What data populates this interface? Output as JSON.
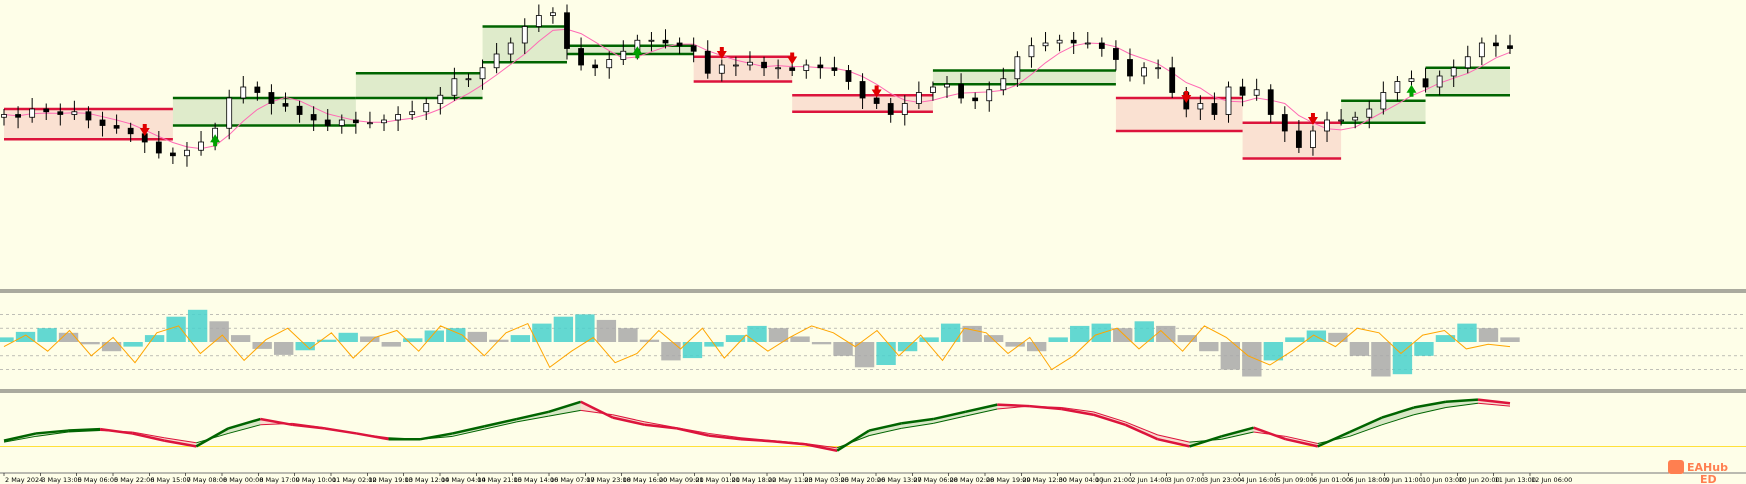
{
  "colors": {
    "background": "#fefee8",
    "bull_band": "#006400",
    "bear_band": "#dc143c",
    "candle": "#000000",
    "ma_line": "#ff69b4",
    "histogram_up": "#48d1cc",
    "histogram_down": "#a9a9a9",
    "oscillator_line": "#ffa500",
    "signal_up": "#00a000",
    "signal_down": "#e00000",
    "level_line": "#ffd700",
    "separator": "#555555",
    "watermark": "#ff7f50"
  },
  "time_axis": {
    "labels": [
      "2 May 2024",
      "3 May 13:00",
      "5 May 06:00",
      "5 May 22:00",
      "6 May 15:00",
      "7 May 08:00",
      "8 May 00:00",
      "8 May 17:00",
      "9 May 10:00",
      "11 May 02:00",
      "12 May 19:00",
      "13 May 12:00",
      "14 May 04:00",
      "14 May 21:00",
      "15 May 14:00",
      "16 May 07:00",
      "17 May 23:00",
      "18 May 16:00",
      "20 May 09:00",
      "21 May 01:00",
      "21 May 18:00",
      "22 May 11:00",
      "23 May 03:00",
      "25 May 20:00",
      "26 May 13:00",
      "27 May 06:00",
      "28 May 02:00",
      "28 May 19:00",
      "29 May 12:00",
      "30 May 04:00",
      "1 Jun 21:00",
      "2 Jun 14:00",
      "3 Jun 07:00",
      "3 Jun 23:00",
      "4 Jun 16:00",
      "5 Jun 09:00",
      "6 Jun 01:00",
      "6 Jun 18:00",
      "9 Jun 11:00",
      "10 Jun 03:00",
      "10 Jun 20:00",
      "11 Jun 13:00",
      "12 Jun 06:00"
    ]
  },
  "watermark": {
    "text": "EAHub",
    "subtext": "ED"
  },
  "chart_data": [
    {
      "type": "candlestick",
      "panel": "price",
      "y_units": "relative price index",
      "ylim": [
        0,
        100
      ],
      "close_series": [
        62,
        61,
        64,
        63,
        62,
        63,
        60,
        58,
        57,
        55,
        52,
        48,
        47,
        49,
        52,
        57,
        68,
        72,
        70,
        66,
        65,
        62,
        60,
        58,
        60,
        59,
        59,
        60,
        62,
        63,
        66,
        69,
        75,
        75,
        79,
        84,
        88,
        94,
        98,
        99,
        86,
        80,
        79,
        82,
        85,
        89,
        89,
        88,
        87,
        85,
        77,
        80,
        80,
        81,
        79,
        79,
        78,
        80,
        79,
        78,
        74,
        68,
        66,
        62,
        66,
        70,
        72,
        73,
        68,
        67,
        71,
        75,
        83,
        87,
        88,
        89,
        88,
        88,
        86,
        82,
        76,
        79,
        79,
        70,
        64,
        66,
        62,
        72,
        69,
        71,
        62,
        56,
        50,
        56,
        60,
        60,
        61,
        64,
        70,
        74,
        75,
        72,
        76,
        79,
        83,
        88,
        87,
        86
      ],
      "bands": [
        {
          "start": 0,
          "end": 12,
          "trend": "down",
          "upper": 64,
          "lower": 53
        },
        {
          "start": 12,
          "end": 25,
          "trend": "up",
          "upper": 68,
          "lower": 58
        },
        {
          "start": 25,
          "end": 34,
          "trend": "up",
          "upper": 77,
          "lower": 68
        },
        {
          "start": 34,
          "end": 40,
          "trend": "up",
          "upper": 94,
          "lower": 81
        },
        {
          "start": 40,
          "end": 49,
          "trend": "up",
          "upper": 87,
          "lower": 84
        },
        {
          "start": 49,
          "end": 56,
          "trend": "down",
          "upper": 83,
          "lower": 74
        },
        {
          "start": 56,
          "end": 66,
          "trend": "down",
          "upper": 69,
          "lower": 63
        },
        {
          "start": 66,
          "end": 79,
          "trend": "up",
          "upper": 78,
          "lower": 73
        },
        {
          "start": 79,
          "end": 88,
          "trend": "down",
          "upper": 68,
          "lower": 56
        },
        {
          "start": 88,
          "end": 95,
          "trend": "down",
          "upper": 59,
          "lower": 46
        },
        {
          "start": 95,
          "end": 101,
          "trend": "up",
          "upper": 67,
          "lower": 59
        },
        {
          "start": 101,
          "end": 108,
          "trend": "up",
          "upper": 79,
          "lower": 69
        }
      ],
      "signals": [
        {
          "index": 10,
          "direction": "down"
        },
        {
          "index": 15,
          "direction": "up"
        },
        {
          "index": 45,
          "direction": "up"
        },
        {
          "index": 51,
          "direction": "down"
        },
        {
          "index": 56,
          "direction": "down"
        },
        {
          "index": 62,
          "direction": "down"
        },
        {
          "index": 84,
          "direction": "down"
        },
        {
          "index": 93,
          "direction": "down"
        },
        {
          "index": 100,
          "direction": "up"
        }
      ]
    },
    {
      "type": "bar",
      "panel": "oscillator",
      "ylim": [
        -100,
        100
      ],
      "histogram": [
        10,
        22,
        30,
        20,
        -5,
        -20,
        -10,
        15,
        55,
        70,
        45,
        15,
        -15,
        -28,
        -18,
        5,
        20,
        12,
        -10,
        8,
        25,
        30,
        22,
        5,
        15,
        40,
        55,
        60,
        48,
        30,
        5,
        -40,
        -35,
        -10,
        15,
        35,
        30,
        12,
        -5,
        -30,
        -55,
        -50,
        -20,
        10,
        40,
        35,
        15,
        -10,
        -20,
        10,
        35,
        40,
        30,
        45,
        35,
        15,
        -20,
        -60,
        -75,
        -40,
        10,
        25,
        20,
        -30,
        -75,
        -70,
        -30,
        15,
        40,
        30,
        10
      ],
      "oscillator_line": [
        -10,
        15,
        -20,
        25,
        -30,
        10,
        -45,
        20,
        35,
        -25,
        15,
        -40,
        5,
        30,
        -15,
        20,
        -35,
        10,
        25,
        -20,
        35,
        15,
        -30,
        20,
        40,
        -55,
        -20,
        10,
        -45,
        -25,
        25,
        -15,
        30,
        -35,
        15,
        -20,
        10,
        35,
        20,
        -10,
        25,
        -30,
        15,
        -40,
        30,
        20,
        -25,
        10,
        -60,
        -30,
        15,
        30,
        -15,
        25,
        -20,
        35,
        10,
        -30,
        -50,
        -20,
        15,
        -10,
        30,
        20,
        -25,
        15,
        25,
        -15,
        -5,
        -10
      ]
    },
    {
      "type": "area",
      "panel": "trend_band",
      "ylim": [
        0,
        100
      ],
      "fast_line": [
        38,
        48,
        52,
        54,
        48,
        38,
        30,
        55,
        68,
        60,
        55,
        48,
        40,
        40,
        48,
        58,
        68,
        78,
        92,
        70,
        60,
        55,
        45,
        40,
        37,
        33,
        24,
        52,
        62,
        68,
        78,
        88,
        86,
        82,
        74,
        60,
        40,
        30,
        44,
        56,
        40,
        30,
        50,
        70,
        84,
        92,
        95,
        90
      ],
      "slow_line": [
        36,
        44,
        50,
        52,
        50,
        42,
        35,
        48,
        60,
        62,
        56,
        48,
        42,
        40,
        44,
        54,
        64,
        72,
        80,
        74,
        64,
        56,
        48,
        42,
        38,
        34,
        28,
        45,
        55,
        62,
        72,
        82,
        86,
        84,
        78,
        64,
        46,
        36,
        40,
        50,
        44,
        34,
        44,
        60,
        74,
        84,
        90,
        86
      ]
    }
  ]
}
